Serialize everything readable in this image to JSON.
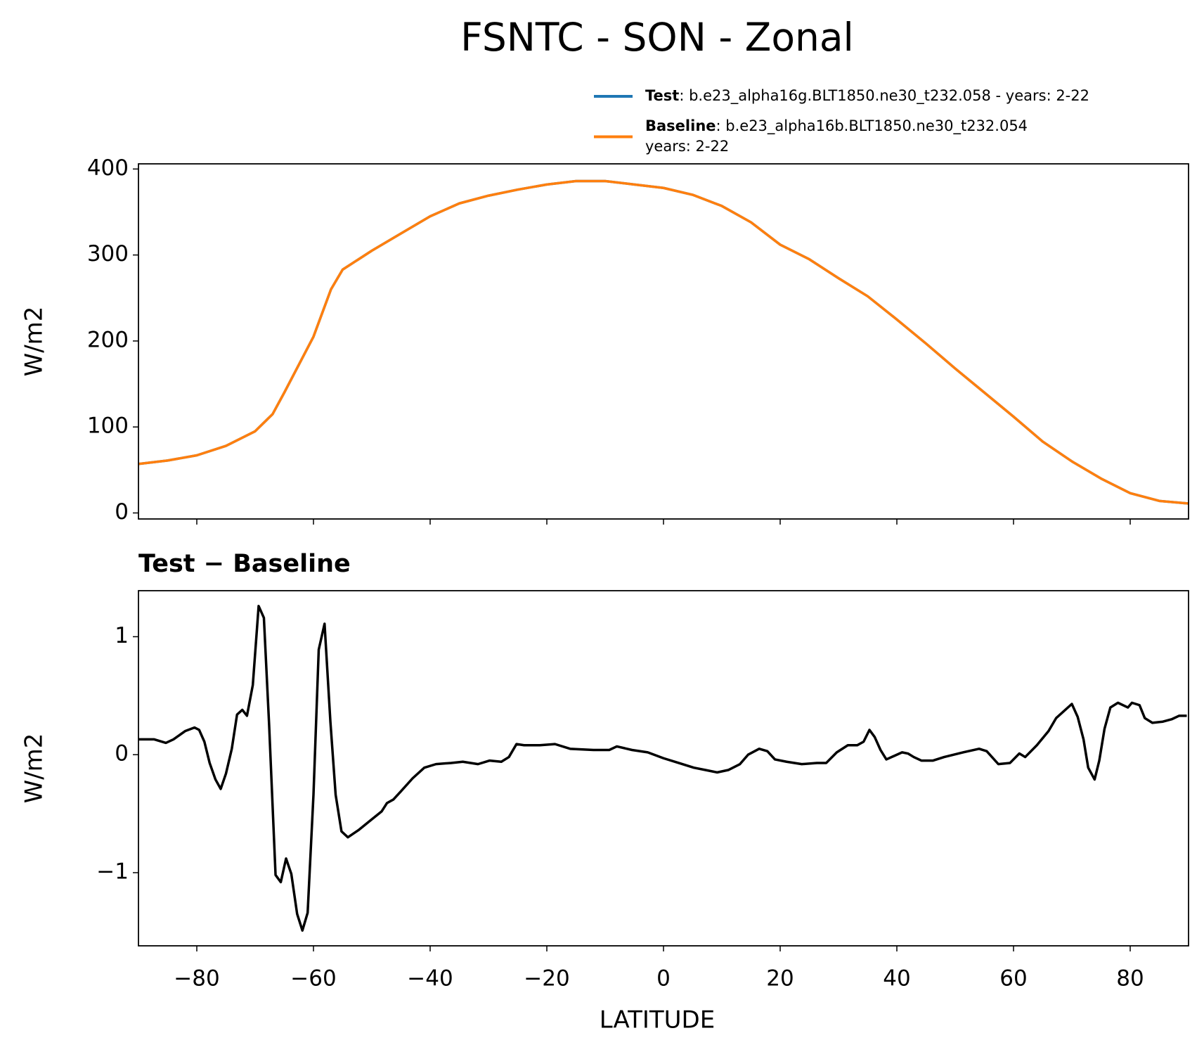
{
  "chart_data": [
    {
      "type": "line",
      "title": "FSNTC - SON - Zonal",
      "ylabel": "W/m2",
      "x": [
        -90,
        -85,
        -80,
        -75,
        -70,
        -67,
        -65,
        -60,
        -57,
        -55,
        -50,
        -45,
        -40,
        -35,
        -30,
        -25,
        -20,
        -15,
        -10,
        -5,
        0,
        5,
        10,
        15,
        20,
        25,
        30,
        35,
        40,
        45,
        50,
        55,
        60,
        65,
        70,
        75,
        80,
        85,
        90
      ],
      "series": [
        {
          "name": "Test",
          "legend_text": [
            ": b.e23_alpha16g.BLT1850.ne30_t232.058 - years: 2-22"
          ],
          "color": "#1f77b4",
          "values": [
            57,
            61,
            67,
            78,
            95,
            115,
            140,
            205,
            260,
            283,
            305,
            325,
            345,
            360,
            369,
            376,
            382,
            386,
            386,
            382,
            378,
            370,
            357,
            338,
            312,
            295,
            273,
            252,
            225,
            197,
            168,
            140,
            112,
            83,
            60,
            40,
            23,
            14,
            11
          ]
        },
        {
          "name": "Baseline",
          "legend_text": [
            ": b.e23_alpha16b.BLT1850.ne30_t232.054",
            "years: 2-22"
          ],
          "color": "#ff7f0e",
          "values": [
            57,
            61,
            67,
            78,
            95,
            115,
            140,
            205,
            260,
            283,
            305,
            325,
            345,
            360,
            369,
            376,
            382,
            386,
            386,
            382,
            378,
            370,
            357,
            338,
            312,
            295,
            273,
            252,
            225,
            197,
            168,
            140,
            112,
            83,
            60,
            40,
            23,
            14,
            11
          ]
        }
      ],
      "xlim": [
        -90,
        90
      ],
      "xticks": [
        -80,
        -60,
        -40,
        -20,
        0,
        20,
        40,
        60,
        80
      ],
      "ylim": [
        -7,
        406
      ],
      "yticks": [
        0,
        100,
        200,
        300,
        400
      ]
    },
    {
      "type": "line",
      "title": "Test − Baseline",
      "ylabel": "W/m2",
      "xlabel": "LATITUDE",
      "x": [
        -90,
        -87.3,
        -85.3,
        -84,
        -82,
        -80.4,
        -79.6,
        -78.7,
        -77.8,
        -76.8,
        -75.9,
        -75,
        -74,
        -73.1,
        -72.2,
        -71.4,
        -70.4,
        -69.4,
        -68.5,
        -67.6,
        -66.5,
        -65.6,
        -64.7,
        -63.8,
        -62.8,
        -61.9,
        -61,
        -60,
        -59.1,
        -58.1,
        -57.1,
        -56.2,
        -55.2,
        -54.1,
        -52.3,
        -50.3,
        -48.3,
        -47.4,
        -46.3,
        -45,
        -43,
        -41,
        -39,
        -36.4,
        -34.4,
        -31.8,
        -29.8,
        -27.8,
        -26.5,
        -25.2,
        -23.9,
        -21.2,
        -18.6,
        -16,
        -12,
        -9.3,
        -8,
        -5.4,
        -2.7,
        0,
        2.6,
        5.2,
        7.2,
        9.2,
        11.1,
        13.1,
        14.5,
        16.4,
        17.8,
        19.1,
        21.1,
        23.7,
        26.3,
        27.9,
        29.7,
        31.6,
        33.2,
        34.3,
        35.3,
        36.2,
        37.2,
        38.2,
        40.9,
        41.9,
        42.9,
        44.2,
        46.2,
        48.1,
        51.4,
        54.1,
        55.4,
        57.4,
        59.4,
        61,
        62,
        64,
        66,
        67.3,
        70,
        71,
        72,
        72.8,
        73.9,
        74.7,
        75.6,
        76.6,
        77.9,
        79.6,
        80.3,
        81.6,
        82.5,
        83.8,
        85.6,
        87.1,
        88.4,
        89.7
      ],
      "series": [
        {
          "name": "Test − Baseline",
          "color": "#000000",
          "values": [
            0.13,
            0.13,
            0.1,
            0.13,
            0.2,
            0.23,
            0.21,
            0.11,
            -0.07,
            -0.21,
            -0.29,
            -0.16,
            0.05,
            0.34,
            0.38,
            0.33,
            0.59,
            1.26,
            1.16,
            0.25,
            -1.02,
            -1.08,
            -0.88,
            -1.01,
            -1.35,
            -1.49,
            -1.34,
            -0.34,
            0.89,
            1.11,
            0.28,
            -0.34,
            -0.65,
            -0.7,
            -0.64,
            -0.56,
            -0.48,
            -0.41,
            -0.38,
            -0.31,
            -0.2,
            -0.11,
            -0.08,
            -0.07,
            -0.06,
            -0.08,
            -0.05,
            -0.06,
            -0.02,
            0.09,
            0.08,
            0.08,
            0.09,
            0.05,
            0.04,
            0.04,
            0.07,
            0.04,
            0.02,
            -0.03,
            -0.07,
            -0.11,
            -0.13,
            -0.15,
            -0.13,
            -0.08,
            0.0,
            0.05,
            0.03,
            -0.04,
            -0.06,
            -0.08,
            -0.07,
            -0.07,
            0.02,
            0.08,
            0.08,
            0.11,
            0.21,
            0.15,
            0.04,
            -0.04,
            0.02,
            0.01,
            -0.02,
            -0.05,
            -0.05,
            -0.02,
            0.02,
            0.05,
            0.03,
            -0.08,
            -0.07,
            0.01,
            -0.02,
            0.08,
            0.2,
            0.31,
            0.43,
            0.32,
            0.13,
            -0.11,
            -0.21,
            -0.05,
            0.22,
            0.4,
            0.44,
            0.4,
            0.44,
            0.42,
            0.31,
            0.27,
            0.28,
            0.3,
            0.33,
            0.33
          ]
        }
      ],
      "xlim": [
        -90,
        90
      ],
      "xticks": [
        {
          "value": -80,
          "label": "−80"
        },
        {
          "value": -60,
          "label": "−60"
        },
        {
          "value": -40,
          "label": "−40"
        },
        {
          "value": -20,
          "label": "−20"
        },
        0,
        20,
        40,
        60,
        80
      ],
      "ylim": [
        -1.62,
        1.39
      ],
      "yticks": [
        {
          "value": -1,
          "label": "−1"
        },
        0,
        1
      ]
    }
  ]
}
